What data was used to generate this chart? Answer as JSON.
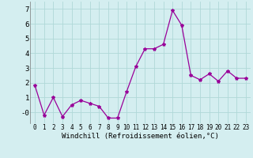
{
  "x": [
    0,
    1,
    2,
    3,
    4,
    5,
    6,
    7,
    8,
    9,
    10,
    11,
    12,
    13,
    14,
    15,
    16,
    17,
    18,
    19,
    20,
    21,
    22,
    23
  ],
  "y": [
    1.8,
    -0.2,
    1.0,
    -0.3,
    0.5,
    0.8,
    0.6,
    0.4,
    -0.4,
    -0.4,
    1.4,
    3.1,
    4.3,
    4.3,
    4.6,
    6.9,
    5.9,
    2.5,
    2.2,
    2.6,
    2.1,
    2.8,
    2.3,
    2.3
  ],
  "xlabel": "Windchill (Refroidissement éolien,°C)",
  "line_color": "#990099",
  "marker": "*",
  "marker_size": 3,
  "background_color": "#d4eef0",
  "grid_color": "#b0d8d8",
  "ylim": [
    -0.75,
    7.5
  ],
  "xlim": [
    -0.5,
    23.5
  ],
  "yticks": [
    0,
    1,
    2,
    3,
    4,
    5,
    6,
    7
  ],
  "ytick_labels": [
    "-0",
    "1",
    "2",
    "3",
    "4",
    "5",
    "6",
    "7"
  ],
  "xticks": [
    0,
    1,
    2,
    3,
    4,
    5,
    6,
    7,
    8,
    9,
    10,
    11,
    12,
    13,
    14,
    15,
    16,
    17,
    18,
    19,
    20,
    21,
    22,
    23
  ],
  "xlabel_fontsize": 6.5,
  "ytick_fontsize": 6.5,
  "xtick_fontsize": 5.5
}
